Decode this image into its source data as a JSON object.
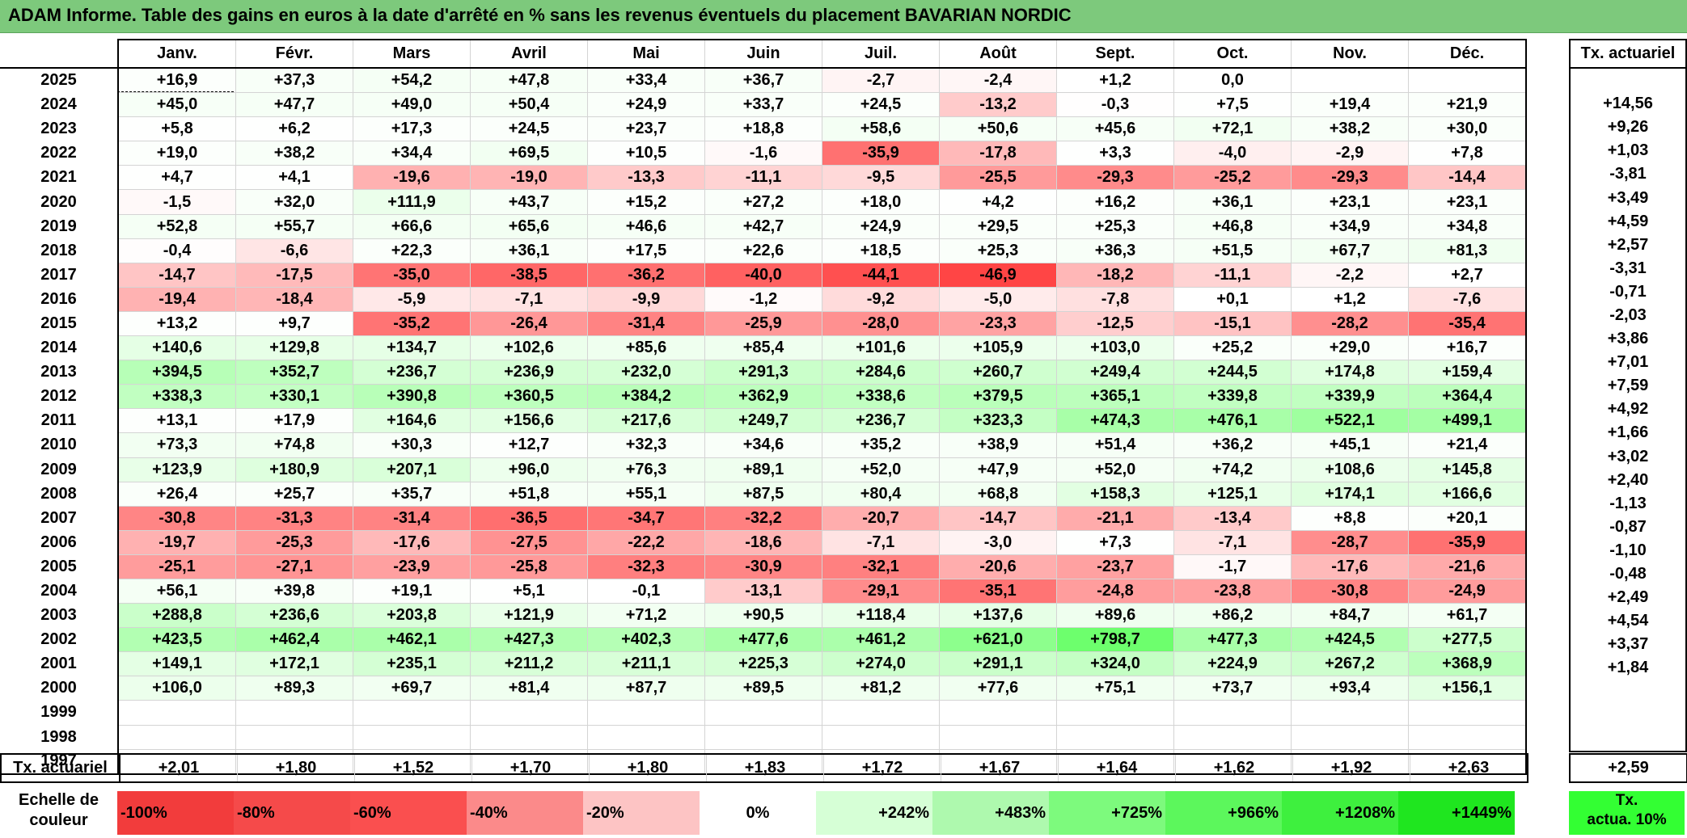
{
  "title": "ADAM Informe. Table des gains en euros à la date d'arrêté en % sans les revenus éventuels du placement BAVARIAN NORDIC",
  "months": [
    "Janv.",
    "Févr.",
    "Mars",
    "Avril",
    "Mai",
    "Juin",
    "Juil.",
    "Août",
    "Sept.",
    "Oct.",
    "Nov.",
    "Déc."
  ],
  "ta_header": "Tx. actuariel",
  "rows": [
    {
      "year": "2025",
      "cells": [
        "+16,9",
        "+37,3",
        "+54,2",
        "+47,8",
        "+33,4",
        "+36,7",
        "-2,7",
        "-2,4",
        "+1,2",
        "0,0",
        "",
        ""
      ],
      "ta": ""
    },
    {
      "year": "2024",
      "cells": [
        "+45,0",
        "+47,7",
        "+49,0",
        "+50,4",
        "+24,9",
        "+33,7",
        "+24,5",
        "-13,2",
        "-0,3",
        "+7,5",
        "+19,4",
        "+21,9"
      ],
      "ta": "+14,56"
    },
    {
      "year": "2023",
      "cells": [
        "+5,8",
        "+6,2",
        "+17,3",
        "+24,5",
        "+23,7",
        "+18,8",
        "+58,6",
        "+50,6",
        "+45,6",
        "+72,1",
        "+38,2",
        "+30,0"
      ],
      "ta": "+9,26"
    },
    {
      "year": "2022",
      "cells": [
        "+19,0",
        "+38,2",
        "+34,4",
        "+69,5",
        "+10,5",
        "-1,6",
        "-35,9",
        "-17,8",
        "+3,3",
        "-4,0",
        "-2,9",
        "+7,8"
      ],
      "ta": "+1,03"
    },
    {
      "year": "2021",
      "cells": [
        "+4,7",
        "+4,1",
        "-19,6",
        "-19,0",
        "-13,3",
        "-11,1",
        "-9,5",
        "-25,5",
        "-29,3",
        "-25,2",
        "-29,3",
        "-14,4"
      ],
      "ta": "-3,81"
    },
    {
      "year": "2020",
      "cells": [
        "-1,5",
        "+32,0",
        "+111,9",
        "+43,7",
        "+15,2",
        "+27,2",
        "+18,0",
        "+4,2",
        "+16,2",
        "+36,1",
        "+23,1",
        "+23,1"
      ],
      "ta": "+3,49"
    },
    {
      "year": "2019",
      "cells": [
        "+52,8",
        "+55,7",
        "+66,6",
        "+65,6",
        "+46,6",
        "+42,7",
        "+24,9",
        "+29,5",
        "+25,3",
        "+46,8",
        "+34,9",
        "+34,8"
      ],
      "ta": "+4,59"
    },
    {
      "year": "2018",
      "cells": [
        "-0,4",
        "-6,6",
        "+22,3",
        "+36,1",
        "+17,5",
        "+22,6",
        "+18,5",
        "+25,3",
        "+36,3",
        "+51,5",
        "+67,7",
        "+81,3"
      ],
      "ta": "+2,57"
    },
    {
      "year": "2017",
      "cells": [
        "-14,7",
        "-17,5",
        "-35,0",
        "-38,5",
        "-36,2",
        "-40,0",
        "-44,1",
        "-46,9",
        "-18,2",
        "-11,1",
        "-2,2",
        "+2,7"
      ],
      "ta": "-3,31"
    },
    {
      "year": "2016",
      "cells": [
        "-19,4",
        "-18,4",
        "-5,9",
        "-7,1",
        "-9,9",
        "-1,2",
        "-9,2",
        "-5,0",
        "-7,8",
        "+0,1",
        "+1,2",
        "-7,6"
      ],
      "ta": "-0,71"
    },
    {
      "year": "2015",
      "cells": [
        "+13,2",
        "+9,7",
        "-35,2",
        "-26,4",
        "-31,4",
        "-25,9",
        "-28,0",
        "-23,3",
        "-12,5",
        "-15,1",
        "-28,2",
        "-35,4"
      ],
      "ta": "-2,03"
    },
    {
      "year": "2014",
      "cells": [
        "+140,6",
        "+129,8",
        "+134,7",
        "+102,6",
        "+85,6",
        "+85,4",
        "+101,6",
        "+105,9",
        "+103,0",
        "+25,2",
        "+29,0",
        "+16,7"
      ],
      "ta": "+3,86"
    },
    {
      "year": "2013",
      "cells": [
        "+394,5",
        "+352,7",
        "+236,7",
        "+236,9",
        "+232,0",
        "+291,3",
        "+284,6",
        "+260,7",
        "+249,4",
        "+244,5",
        "+174,8",
        "+159,4"
      ],
      "ta": "+7,01"
    },
    {
      "year": "2012",
      "cells": [
        "+338,3",
        "+330,1",
        "+390,8",
        "+360,5",
        "+384,2",
        "+362,9",
        "+338,6",
        "+379,5",
        "+365,1",
        "+339,8",
        "+339,9",
        "+364,4"
      ],
      "ta": "+7,59"
    },
    {
      "year": "2011",
      "cells": [
        "+13,1",
        "+17,9",
        "+164,6",
        "+156,6",
        "+217,6",
        "+249,7",
        "+236,7",
        "+323,3",
        "+474,3",
        "+476,1",
        "+522,1",
        "+499,1"
      ],
      "ta": "+4,92"
    },
    {
      "year": "2010",
      "cells": [
        "+73,3",
        "+74,8",
        "+30,3",
        "+12,7",
        "+32,3",
        "+34,6",
        "+35,2",
        "+38,9",
        "+51,4",
        "+36,2",
        "+45,1",
        "+21,4"
      ],
      "ta": "+1,66"
    },
    {
      "year": "2009",
      "cells": [
        "+123,9",
        "+180,9",
        "+207,1",
        "+96,0",
        "+76,3",
        "+89,1",
        "+52,0",
        "+47,9",
        "+52,0",
        "+74,2",
        "+108,6",
        "+145,8"
      ],
      "ta": "+3,02"
    },
    {
      "year": "2008",
      "cells": [
        "+26,4",
        "+25,7",
        "+35,7",
        "+51,8",
        "+55,1",
        "+87,5",
        "+80,4",
        "+68,8",
        "+158,3",
        "+125,1",
        "+174,1",
        "+166,6"
      ],
      "ta": "+2,40"
    },
    {
      "year": "2007",
      "cells": [
        "-30,8",
        "-31,3",
        "-31,4",
        "-36,5",
        "-34,7",
        "-32,2",
        "-20,7",
        "-14,7",
        "-21,1",
        "-13,4",
        "+8,8",
        "+20,1"
      ],
      "ta": "-1,13"
    },
    {
      "year": "2006",
      "cells": [
        "-19,7",
        "-25,3",
        "-17,6",
        "-27,5",
        "-22,2",
        "-18,6",
        "-7,1",
        "-3,0",
        "+7,3",
        "-7,1",
        "-28,7",
        "-35,9"
      ],
      "ta": "-0,87"
    },
    {
      "year": "2005",
      "cells": [
        "-25,1",
        "-27,1",
        "-23,9",
        "-25,8",
        "-32,3",
        "-30,9",
        "-32,1",
        "-20,6",
        "-23,7",
        "-1,7",
        "-17,6",
        "-21,6"
      ],
      "ta": "-1,10"
    },
    {
      "year": "2004",
      "cells": [
        "+56,1",
        "+39,8",
        "+19,1",
        "+5,1",
        "-0,1",
        "-13,1",
        "-29,1",
        "-35,1",
        "-24,8",
        "-23,8",
        "-30,8",
        "-24,9"
      ],
      "ta": "-0,48"
    },
    {
      "year": "2003",
      "cells": [
        "+288,8",
        "+236,6",
        "+203,8",
        "+121,9",
        "+71,2",
        "+90,5",
        "+118,4",
        "+137,6",
        "+89,6",
        "+86,2",
        "+84,7",
        "+61,7"
      ],
      "ta": "+2,49"
    },
    {
      "year": "2002",
      "cells": [
        "+423,5",
        "+462,4",
        "+462,1",
        "+427,3",
        "+402,3",
        "+477,6",
        "+461,2",
        "+621,0",
        "+798,7",
        "+477,3",
        "+424,5",
        "+277,5"
      ],
      "ta": "+4,54"
    },
    {
      "year": "2001",
      "cells": [
        "+149,1",
        "+172,1",
        "+235,1",
        "+211,2",
        "+211,1",
        "+225,3",
        "+274,0",
        "+291,1",
        "+324,0",
        "+224,9",
        "+267,2",
        "+368,9"
      ],
      "ta": "+3,37"
    },
    {
      "year": "2000",
      "cells": [
        "+106,0",
        "+89,3",
        "+69,7",
        "+81,4",
        "+87,7",
        "+89,5",
        "+81,2",
        "+77,6",
        "+75,1",
        "+73,7",
        "+93,4",
        "+156,1"
      ],
      "ta": "+1,84"
    },
    {
      "year": "1999",
      "cells": [
        "",
        "",
        "",
        "",
        "",
        "",
        "",
        "",
        "",
        "",
        "",
        ""
      ],
      "ta": ""
    },
    {
      "year": "1998",
      "cells": [
        "",
        "",
        "",
        "",
        "",
        "",
        "",
        "",
        "",
        "",
        "",
        ""
      ],
      "ta": ""
    },
    {
      "year": "1997",
      "cells": [
        "",
        "",
        "",
        "",
        "",
        "",
        "",
        "",
        "",
        "",
        "",
        ""
      ],
      "ta": ""
    }
  ],
  "footer": {
    "label": "Tx. actuariel",
    "values": [
      "+2,01",
      "+1,80",
      "+1,52",
      "+1,70",
      "+1,80",
      "+1,83",
      "+1,72",
      "+1,67",
      "+1,64",
      "+1,62",
      "+1,92",
      "+2,63"
    ],
    "ta": "+2,59"
  },
  "scale": {
    "label_line1": "Echelle de",
    "label_line2": "couleur",
    "ta_line1": "Tx.",
    "ta_line2": "actua. 10%",
    "ta_color": "#33ff33",
    "items": [
      {
        "label": "-100%",
        "color": "#f23c3c",
        "kind": "neg"
      },
      {
        "label": "-80%",
        "color": "#f54a4a",
        "kind": "neg"
      },
      {
        "label": "-60%",
        "color": "#fa4f4f",
        "kind": "neg"
      },
      {
        "label": "-40%",
        "color": "#fb8a8a",
        "kind": "neg"
      },
      {
        "label": "-20%",
        "color": "#fdc4c4",
        "kind": "neg"
      },
      {
        "label": "0%",
        "color": "#ffffff",
        "kind": "zero"
      },
      {
        "label": "+242%",
        "color": "#d6ffd6",
        "kind": "pos"
      },
      {
        "label": "+483%",
        "color": "#aef9ae",
        "kind": "pos"
      },
      {
        "label": "+725%",
        "color": "#7dfa7d",
        "kind": "pos"
      },
      {
        "label": "+966%",
        "color": "#5cf75c",
        "kind": "pos"
      },
      {
        "label": "+1208%",
        "color": "#3ef03e",
        "kind": "pos"
      },
      {
        "label": "+1449%",
        "color": "#1fe61f",
        "kind": "pos"
      }
    ]
  }
}
